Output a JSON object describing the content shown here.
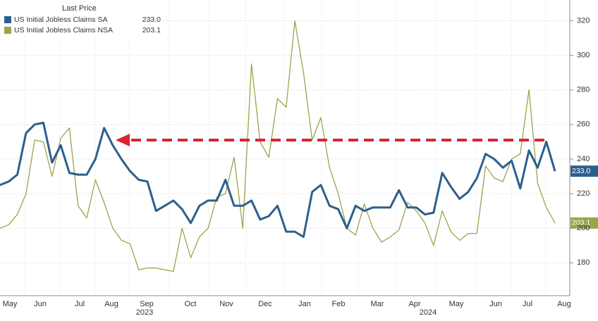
{
  "chart_data": {
    "type": "line",
    "legend_title": "Last Price",
    "series": [
      {
        "name": "US Initial Jobless Claims SA",
        "last_label": "233.0",
        "color": "#2c5f8e",
        "values": [
          225,
          227,
          231,
          255,
          260,
          261,
          238,
          248,
          232,
          231,
          231,
          240,
          258,
          248,
          240,
          233,
          228,
          227,
          210,
          213,
          216,
          211,
          203,
          213,
          216,
          216,
          228,
          213,
          213,
          216,
          205,
          207,
          213,
          198,
          198,
          195,
          221,
          225,
          213,
          211,
          200,
          213,
          210,
          212,
          212,
          212,
          222,
          212,
          212,
          208,
          209,
          232,
          224,
          217,
          221,
          229,
          243,
          240,
          235,
          239,
          223,
          245,
          235,
          250,
          233
        ]
      },
      {
        "name": "US Initial Jobless Claims NSA",
        "last_label": "203.1",
        "color": "#9ba44c",
        "values": [
          200,
          202,
          208,
          220,
          251,
          250,
          230,
          252,
          258,
          213,
          206,
          228,
          215,
          200,
          193,
          191,
          176,
          177,
          177,
          176,
          175,
          200,
          183,
          195,
          200,
          218,
          220,
          241,
          200,
          295,
          250,
          241,
          275,
          270,
          320,
          290,
          251,
          264,
          235,
          220,
          200,
          196,
          214,
          200,
          192,
          195,
          199,
          215,
          210,
          203,
          190,
          210,
          198,
          193,
          197,
          197,
          236,
          229,
          227,
          240,
          243,
          280,
          226,
          212,
          203
        ]
      }
    ],
    "month_labels": [
      "May",
      "Jun",
      "Jul",
      "Aug",
      "Sep",
      "Oct",
      "Nov",
      "Dec",
      "Jan",
      "Feb",
      "Mar",
      "Apr",
      "May",
      "Jun",
      "Jul",
      "Aug"
    ],
    "year_labels": [
      "2023",
      "2024"
    ],
    "ylim": [
      161,
      332
    ],
    "yticks": [
      180,
      200,
      220,
      240,
      260,
      280,
      300,
      320
    ],
    "grid": true
  }
}
